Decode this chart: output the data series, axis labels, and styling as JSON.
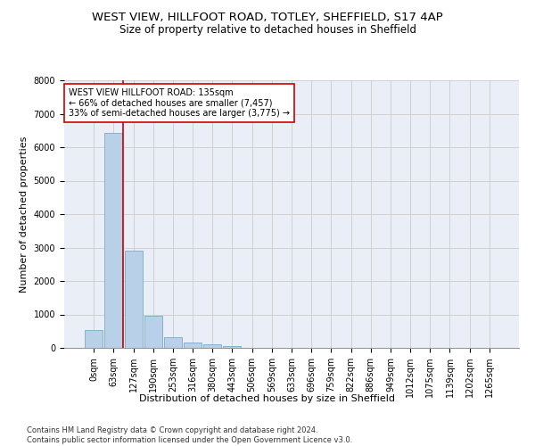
{
  "title_line1": "WEST VIEW, HILLFOOT ROAD, TOTLEY, SHEFFIELD, S17 4AP",
  "title_line2": "Size of property relative to detached houses in Sheffield",
  "xlabel": "Distribution of detached houses by size in Sheffield",
  "ylabel": "Number of detached properties",
  "footnote": "Contains HM Land Registry data © Crown copyright and database right 2024.\nContains public sector information licensed under the Open Government Licence v3.0.",
  "bar_labels": [
    "0sqm",
    "63sqm",
    "127sqm",
    "190sqm",
    "253sqm",
    "316sqm",
    "380sqm",
    "443sqm",
    "506sqm",
    "569sqm",
    "633sqm",
    "696sqm",
    "759sqm",
    "822sqm",
    "886sqm",
    "949sqm",
    "1012sqm",
    "1075sqm",
    "1139sqm",
    "1202sqm",
    "1265sqm"
  ],
  "bar_values": [
    530,
    6430,
    2920,
    970,
    330,
    165,
    100,
    65,
    0,
    0,
    0,
    0,
    0,
    0,
    0,
    0,
    0,
    0,
    0,
    0,
    0
  ],
  "bar_color": "#b8d0e8",
  "bar_edge_color": "#7aaac8",
  "annotation_text": "WEST VIEW HILLFOOT ROAD: 135sqm\n← 66% of detached houses are smaller (7,457)\n33% of semi-detached houses are larger (3,775) →",
  "vline_x": 1.5,
  "vline_color": "#cc0000",
  "annotation_box_color": "#ffffff",
  "annotation_box_edge": "#cc0000",
  "ylim": [
    0,
    8000
  ],
  "yticks": [
    0,
    1000,
    2000,
    3000,
    4000,
    5000,
    6000,
    7000,
    8000
  ],
  "grid_color": "#cccccc",
  "bg_color": "#eaeff7",
  "title_fontsize": 9.5,
  "subtitle_fontsize": 8.5,
  "xlabel_fontsize": 8,
  "ylabel_fontsize": 8,
  "tick_fontsize": 7,
  "annot_fontsize": 7,
  "footnote_fontsize": 6
}
